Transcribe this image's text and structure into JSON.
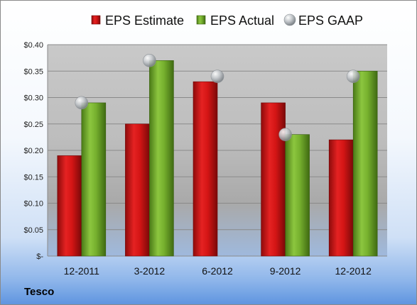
{
  "company": "Tesco",
  "chart_data": {
    "type": "bar",
    "categories": [
      "12-2011",
      "3-2012",
      "6-2012",
      "9-2012",
      "12-2012"
    ],
    "series": [
      {
        "name": "EPS Estimate",
        "kind": "bar",
        "color": "#cc1111",
        "values": [
          0.19,
          0.25,
          0.33,
          0.29,
          0.22
        ]
      },
      {
        "name": "EPS Actual",
        "kind": "bar",
        "color": "#6ca62a",
        "values": [
          0.29,
          0.37,
          null,
          0.23,
          0.35
        ]
      },
      {
        "name": "EPS GAAP",
        "kind": "marker",
        "color": "#b8bcc0",
        "values": [
          0.29,
          0.37,
          0.34,
          0.23,
          0.34
        ]
      }
    ],
    "ylim": [
      0,
      0.4
    ],
    "yticks": [
      0,
      0.05,
      0.1,
      0.15,
      0.2,
      0.25,
      0.3,
      0.35,
      0.4
    ],
    "ytick_labels": [
      "$-",
      "$0.05",
      "$0.10",
      "$0.15",
      "$0.20",
      "$0.25",
      "$0.30",
      "$0.35",
      "$0.40"
    ],
    "grid": true,
    "legend_position": "top"
  }
}
